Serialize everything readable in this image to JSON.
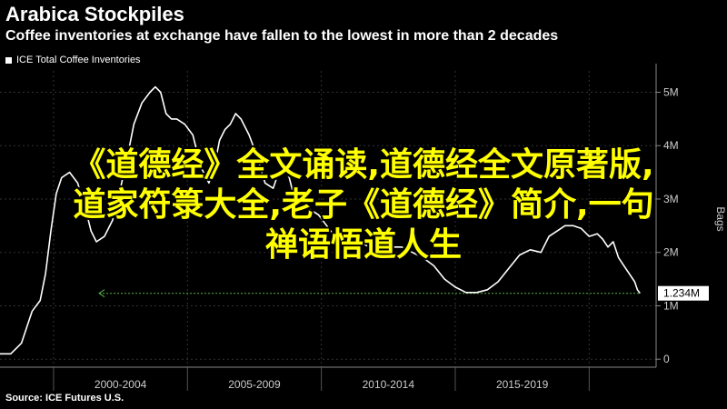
{
  "title": "Arabica Stockpiles",
  "subtitle": "Coffee inventories at exchange have fallen to the lowest in more than 2 decades",
  "source": "Source: ICE Futures U.S.",
  "overlay": {
    "line1": "《道德经》全文诵读,道德经全文原著版,",
    "line2": "道家符箓大全,老子《道德经》简介,一句",
    "line3": "禅语悟道人生"
  },
  "colors": {
    "background": "#000000",
    "series": "#ffffff",
    "reference_line": "#5fb34a",
    "overlay_text": "#ffff00",
    "grid": "#333333"
  },
  "chart_data": {
    "type": "line",
    "legend": [
      "ICE Total Coffee Inventories"
    ],
    "ylabel": "Bags",
    "ylim": [
      -0.15,
      5.4
    ],
    "xlim": [
      1998.0,
      2022.5
    ],
    "y_ticks": [
      0,
      1,
      2,
      3,
      4,
      5
    ],
    "y_tick_labels": [
      "0",
      "1M",
      "2M",
      "3M",
      "4M",
      "5M"
    ],
    "x_tick_labels": [
      "2000-2004",
      "2005-2009",
      "2010-2014",
      "2015-2019"
    ],
    "x_tick_ranges": [
      [
        2000,
        2005
      ],
      [
        2005,
        2010
      ],
      [
        2010,
        2015
      ],
      [
        2015,
        2020
      ]
    ],
    "last_value_label": "1.234M",
    "reference_value": 1.234,
    "series": [
      {
        "name": "ICE Total Coffee Inventories",
        "x": [
          1998.0,
          1998.4,
          1998.8,
          1999.2,
          1999.5,
          1999.7,
          1999.9,
          2000.1,
          2000.3,
          2000.6,
          2000.9,
          2001.2,
          2001.4,
          2001.6,
          2001.9,
          2002.2,
          2002.5,
          2002.8,
          2003.0,
          2003.3,
          2003.6,
          2003.8,
          2004.0,
          2004.2,
          2004.4,
          2004.6,
          2004.9,
          2005.2,
          2005.5,
          2005.8,
          2006.0,
          2006.2,
          2006.4,
          2006.6,
          2006.8,
          2007.0,
          2007.3,
          2007.6,
          2007.9,
          2008.2,
          2008.4,
          2008.6,
          2008.8,
          2009.0,
          2009.2,
          2009.4,
          2009.6,
          2009.9,
          2010.2,
          2010.5,
          2010.8,
          2011.1,
          2011.4,
          2011.8,
          2012.2,
          2012.6,
          2013.0,
          2013.4,
          2013.8,
          2014.2,
          2014.6,
          2015.0,
          2015.4,
          2015.8,
          2016.2,
          2016.6,
          2017.0,
          2017.4,
          2017.8,
          2018.2,
          2018.5,
          2018.8,
          2019.1,
          2019.4,
          2019.7,
          2020.0,
          2020.3,
          2020.5,
          2020.7,
          2020.9,
          2021.1,
          2021.3,
          2021.5,
          2021.7,
          2021.8,
          2021.9
        ],
        "values": [
          0.1,
          0.1,
          0.3,
          0.9,
          1.1,
          1.6,
          2.4,
          3.1,
          3.4,
          3.5,
          3.3,
          2.8,
          2.4,
          2.2,
          2.3,
          2.6,
          3.2,
          3.9,
          4.4,
          4.8,
          5.0,
          5.1,
          5.0,
          4.6,
          4.5,
          4.5,
          4.4,
          4.2,
          3.6,
          3.3,
          3.6,
          4.1,
          4.3,
          4.4,
          4.6,
          4.5,
          4.2,
          3.8,
          3.3,
          3.2,
          3.5,
          3.6,
          3.4,
          3.0,
          2.9,
          3.0,
          2.8,
          2.7,
          2.5,
          2.3,
          2.2,
          2.3,
          2.2,
          2.1,
          2.2,
          2.1,
          2.1,
          2.0,
          1.9,
          1.75,
          1.5,
          1.35,
          1.25,
          1.25,
          1.3,
          1.45,
          1.7,
          1.95,
          2.05,
          2.0,
          2.3,
          2.4,
          2.5,
          2.5,
          2.45,
          2.3,
          2.35,
          2.25,
          2.1,
          2.2,
          1.9,
          1.75,
          1.6,
          1.45,
          1.3,
          1.234
        ]
      }
    ]
  }
}
